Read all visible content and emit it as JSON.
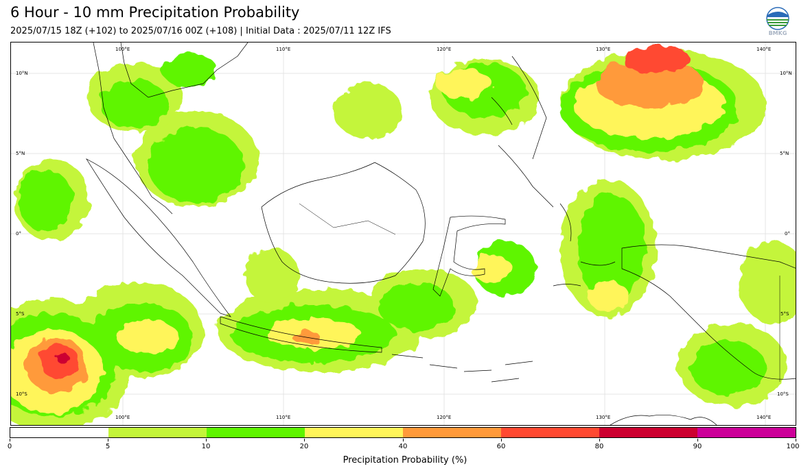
{
  "header": {
    "title": "6 Hour - 10 mm Precipitation Probability",
    "subtitle": "2025/07/15 18Z (+102) to 2025/07/16 00Z (+108) | Initial Data : 2025/07/11 12Z IFS",
    "logo_text": "BMKG"
  },
  "map": {
    "top_lon_labels": [
      "100°E",
      "110°E",
      "120°E",
      "130°E",
      "140°E"
    ],
    "bottom_lon_labels": [
      "100°E",
      "110°E",
      "120°E",
      "130°E",
      "140°E"
    ],
    "left_lat_labels": [
      "10°N",
      "5°N",
      "0°",
      "5°S",
      "10°S"
    ],
    "right_lat_labels": [
      "10°N",
      "5°N",
      "0°",
      "5°S",
      "10°S"
    ]
  },
  "colorbar": {
    "title": "Precipitation Probability (%)",
    "ticks": [
      "0",
      "5",
      "10",
      "20",
      "40",
      "60",
      "80",
      "90",
      "100"
    ],
    "colors": [
      "#ffffff",
      "#c4f53a",
      "#5ff500",
      "#fff55a",
      "#ff9a3a",
      "#ff4a32",
      "#cc0030",
      "#cc0099"
    ]
  }
}
